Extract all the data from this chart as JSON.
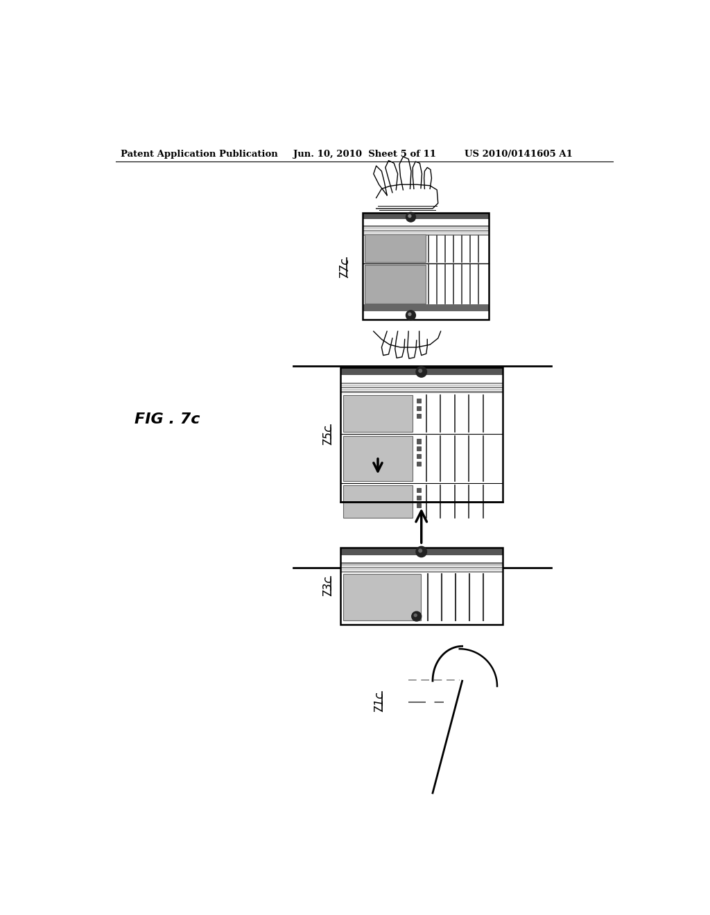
{
  "header_left": "Patent Application Publication",
  "header_center": "Jun. 10, 2010  Sheet 5 of 11",
  "header_right": "US 2010/0141605 A1",
  "fig_label": "FIG . 7c",
  "label_77c": "77c",
  "label_75c": "75c",
  "label_73c": "73c",
  "label_71c": "71c",
  "bg_color": "#ffffff"
}
